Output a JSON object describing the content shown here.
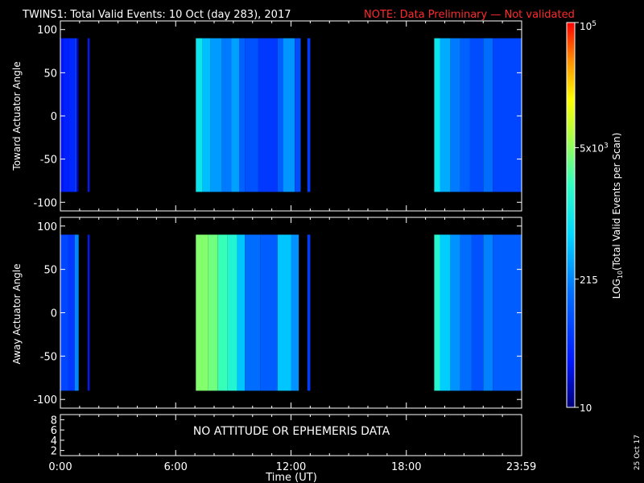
{
  "header": {
    "title": "TWINS1: Total Valid Events: 10 Oct (day 283), 2017",
    "note": "NOTE: Data Preliminary — Not validated",
    "note_color": "#ff2a2a"
  },
  "footer": {
    "date_stamp": "25 Oct 17"
  },
  "chart_data": [
    {
      "type": "heatmap",
      "name": "toward",
      "ylabel": "Toward Actuator Angle",
      "xlim": [
        0,
        24
      ],
      "ylim": [
        -110,
        110
      ],
      "y_ticks": [
        "100",
        "50",
        "0",
        "-50",
        "-100"
      ],
      "data_y_range": [
        -88,
        90
      ],
      "segments": [
        {
          "x": [
            0.0,
            0.15
          ],
          "value": 28
        },
        {
          "x": [
            0.15,
            0.45
          ],
          "value": 35
        },
        {
          "x": [
            0.45,
            0.75
          ],
          "value": 40
        },
        {
          "x": [
            0.75,
            0.85
          ],
          "value": 60
        },
        {
          "x": [
            0.85,
            0.95
          ],
          "value": 14
        },
        {
          "x": [
            1.42,
            1.52
          ],
          "value": 30
        },
        {
          "x": [
            7.05,
            7.4
          ],
          "value": 900
        },
        {
          "x": [
            7.4,
            7.8
          ],
          "value": 450
        },
        {
          "x": [
            7.8,
            8.4
          ],
          "value": 280
        },
        {
          "x": [
            8.4,
            8.9
          ],
          "value": 180
        },
        {
          "x": [
            8.9,
            9.3
          ],
          "value": 300
        },
        {
          "x": [
            9.3,
            9.6
          ],
          "value": 120
        },
        {
          "x": [
            9.6,
            10.3
          ],
          "value": 90
        },
        {
          "x": [
            10.3,
            11.3
          ],
          "value": 55
        },
        {
          "x": [
            11.3,
            11.6
          ],
          "value": 110
        },
        {
          "x": [
            11.6,
            12.2
          ],
          "value": 260
        },
        {
          "x": [
            12.2,
            12.5
          ],
          "value": 80
        },
        {
          "x": [
            12.85,
            13.0
          ],
          "value": 60
        },
        {
          "x": [
            19.45,
            19.75
          ],
          "value": 900
        },
        {
          "x": [
            19.75,
            20.3
          ],
          "value": 350
        },
        {
          "x": [
            20.3,
            20.8
          ],
          "value": 180
        },
        {
          "x": [
            20.8,
            21.3
          ],
          "value": 120
        },
        {
          "x": [
            21.3,
            22.0
          ],
          "value": 80
        },
        {
          "x": [
            22.0,
            22.5
          ],
          "value": 150
        },
        {
          "x": [
            22.5,
            24.0
          ],
          "value": 70
        }
      ]
    },
    {
      "type": "heatmap",
      "name": "away",
      "ylabel": "Away Actuator Angle",
      "xlim": [
        0,
        24
      ],
      "ylim": [
        -110,
        110
      ],
      "y_ticks": [
        "100",
        "50",
        "0",
        "-50",
        "-100"
      ],
      "data_y_range": [
        -90,
        90
      ],
      "segments": [
        {
          "x": [
            0.0,
            0.4
          ],
          "value": 70
        },
        {
          "x": [
            0.4,
            0.75
          ],
          "value": 55
        },
        {
          "x": [
            0.75,
            0.95
          ],
          "value": 220
        },
        {
          "x": [
            1.42,
            1.52
          ],
          "value": 30
        },
        {
          "x": [
            7.05,
            7.7
          ],
          "value": 4500
        },
        {
          "x": [
            7.7,
            8.2
          ],
          "value": 3800
        },
        {
          "x": [
            8.2,
            8.7
          ],
          "value": 2200
        },
        {
          "x": [
            8.7,
            9.2
          ],
          "value": 1500
        },
        {
          "x": [
            9.2,
            9.6
          ],
          "value": 500
        },
        {
          "x": [
            9.6,
            10.4
          ],
          "value": 150
        },
        {
          "x": [
            10.4,
            11.3
          ],
          "value": 110
        },
        {
          "x": [
            11.3,
            12.0
          ],
          "value": 500
        },
        {
          "x": [
            12.0,
            12.4
          ],
          "value": 250
        },
        {
          "x": [
            12.85,
            13.0
          ],
          "value": 60
        },
        {
          "x": [
            19.45,
            19.75
          ],
          "value": 1600
        },
        {
          "x": [
            19.75,
            20.3
          ],
          "value": 550
        },
        {
          "x": [
            20.3,
            20.8
          ],
          "value": 250
        },
        {
          "x": [
            20.8,
            21.4
          ],
          "value": 150
        },
        {
          "x": [
            21.4,
            22.0
          ],
          "value": 90
        },
        {
          "x": [
            22.0,
            22.5
          ],
          "value": 200
        },
        {
          "x": [
            22.5,
            24.0
          ],
          "value": 110
        }
      ]
    },
    {
      "type": "table",
      "name": "attitude",
      "y_ticks": [
        "8",
        "6",
        "4",
        "2"
      ],
      "message": "NO ATTITUDE OR EPHEMERIS DATA",
      "xlabel": "Time (UT)",
      "x_tick_labels": [
        "0:00",
        "6:00",
        "12:00",
        "18:00",
        "23:59"
      ],
      "x_tick_hours": [
        0,
        6,
        12,
        18,
        23.983
      ]
    }
  ],
  "colorbar": {
    "label": "LOG10(Total Valid Events per Scan)",
    "range": [
      10,
      100000
    ],
    "tick_labels": [
      "10",
      "215",
      "5x10^3",
      "10^5"
    ],
    "tick_values": [
      10,
      215,
      5000,
      100000
    ]
  }
}
